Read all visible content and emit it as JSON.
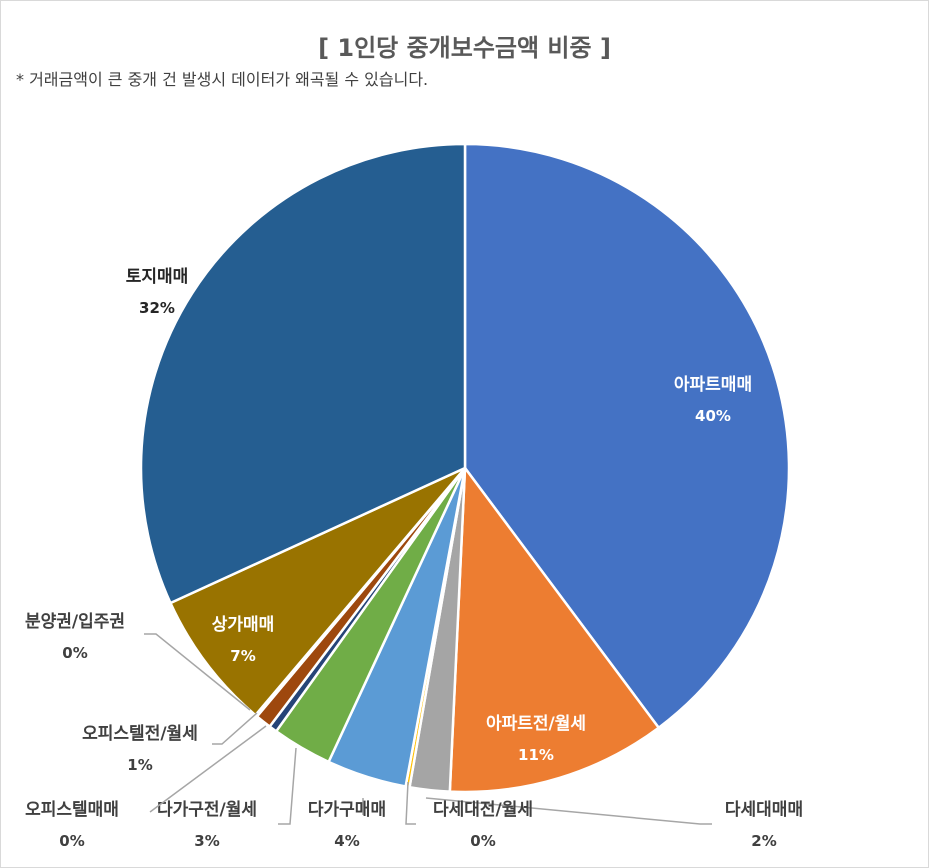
{
  "chart_data": {
    "type": "pie",
    "title": "[ 1인당 중개보수금액 비중 ]",
    "subtitle": "* 거래금액이 큰 중개 건 발생시 데이터가 왜곡될 수 있습니다.",
    "slices": [
      {
        "label": "아파트매매",
        "value": 40,
        "pct_label": "40%",
        "color": "#4472c4"
      },
      {
        "label": "아파트전/월세",
        "value": 11,
        "pct_label": "11%",
        "color": "#ed7d31"
      },
      {
        "label": "다세대매매",
        "value": 2,
        "pct_label": "2%",
        "color": "#a5a5a5"
      },
      {
        "label": "다세대전/월세",
        "value": 0.2,
        "pct_label": "0%",
        "color": "#ffc000"
      },
      {
        "label": "다가구매매",
        "value": 4,
        "pct_label": "4%",
        "color": "#5b9bd5"
      },
      {
        "label": "다가구전/월세",
        "value": 3,
        "pct_label": "3%",
        "color": "#70ad47"
      },
      {
        "label": "오피스텔매매",
        "value": 0.4,
        "pct_label": "0%",
        "color": "#264478"
      },
      {
        "label": "오피스텔전/월세",
        "value": 0.8,
        "pct_label": "1%",
        "color": "#9e480e"
      },
      {
        "label": "분양권/입주권",
        "value": 0.1,
        "pct_label": "0%",
        "color": "#636363"
      },
      {
        "label": "상가매매",
        "value": 7,
        "pct_label": "7%",
        "color": "#997300"
      },
      {
        "label": "토지매매",
        "value": 32,
        "pct_label": "32%",
        "color": "#255e91"
      }
    ]
  }
}
